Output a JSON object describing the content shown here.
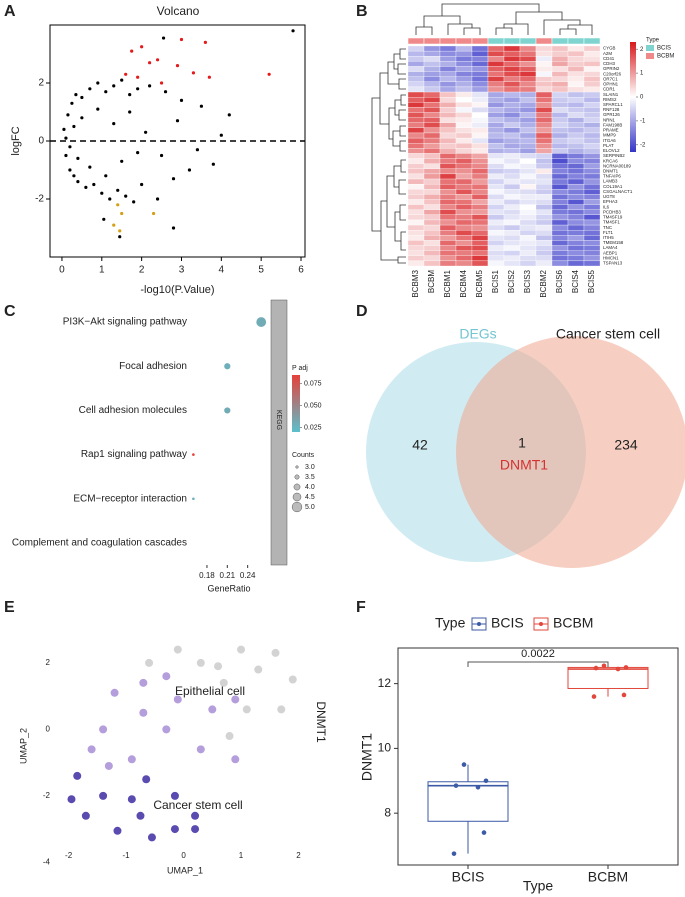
{
  "chart_data": [
    {
      "type": "scatter",
      "panel": "A",
      "title": "Volcano",
      "xlabel": "-log10(P.Value)",
      "ylabel": "logFC",
      "xlim": [
        -0.3,
        6.1
      ],
      "ylim": [
        -4,
        4
      ],
      "xticks": [
        0,
        1,
        2,
        3,
        4,
        5,
        6
      ],
      "yticks": [
        -2,
        0,
        2
      ],
      "hline": 0,
      "frame": true,
      "series": [
        {
          "color": "#000000",
          "x": [
            0.05,
            0.1,
            0.15,
            0.2,
            0.25,
            0.3,
            0.35,
            0.4,
            0.5,
            0.6,
            0.7,
            0.8,
            0.9,
            1.0,
            1.1,
            1.2,
            1.3,
            1.4,
            1.5,
            1.6,
            1.7,
            1.8,
            1.9,
            2.0,
            2.2,
            2.4,
            2.6,
            2.8,
            3.0,
            3.2,
            3.5,
            3.8,
            4.2,
            0.1,
            0.2,
            0.3,
            0.4,
            0.5,
            0.7,
            0.9,
            1.1,
            1.3,
            1.5,
            1.7,
            1.9,
            2.1,
            2.5,
            2.9,
            3.4,
            4.0,
            1.05,
            1.45,
            2.8,
            5.8,
            2.55
          ],
          "values": [
            0.4,
            -0.5,
            0.9,
            -1.0,
            1.3,
            -1.2,
            1.6,
            -1.4,
            1.5,
            -1.6,
            1.8,
            -1.5,
            2.0,
            -1.8,
            1.7,
            -2.0,
            1.9,
            -1.7,
            2.1,
            -1.9,
            1.6,
            -2.1,
            1.8,
            -1.5,
            1.9,
            -2.0,
            1.7,
            -1.3,
            1.4,
            -1.0,
            1.2,
            -0.8,
            0.9,
            0.1,
            -0.2,
            0.5,
            -0.6,
            0.8,
            -0.9,
            1.1,
            -1.2,
            0.6,
            -0.7,
            1.0,
            -0.4,
            0.3,
            -0.5,
            0.7,
            -0.3,
            0.2,
            -2.7,
            -3.3,
            -3.0,
            3.8,
            3.55
          ]
        },
        {
          "color": "#e41a1c",
          "x": [
            1.6,
            1.75,
            1.9,
            2.0,
            2.2,
            2.4,
            2.5,
            2.9,
            3.3,
            3.6,
            3.7,
            3.0,
            5.2
          ],
          "values": [
            2.3,
            3.1,
            2.2,
            3.25,
            2.7,
            2.8,
            2.0,
            2.6,
            2.35,
            3.4,
            2.2,
            3.5,
            2.3
          ]
        },
        {
          "color": "#d4a017",
          "x": [
            1.3,
            1.4,
            1.45,
            1.5,
            2.3
          ],
          "values": [
            -2.9,
            -2.2,
            -3.1,
            -2.5,
            -2.5
          ]
        }
      ]
    },
    {
      "type": "heatmap",
      "panel": "B",
      "columns": [
        "BCBM3",
        "BCBM",
        "BCBM1",
        "BCBM4",
        "BCBM5",
        "BCIS1",
        "BCIS2",
        "BCIS3",
        "BCBM2",
        "BCIS6",
        "BCIS4",
        "BCIS5"
      ],
      "column_types": [
        "BCBM",
        "BCBM",
        "BCBM",
        "BCBM",
        "BCBM",
        "BCIS",
        "BCIS",
        "BCIS",
        "BCBM",
        "BCIS",
        "BCIS",
        "BCIS"
      ],
      "legend_title": "Type",
      "types": [
        {
          "name": "BCIS",
          "color": "#7fd4d0"
        },
        {
          "name": "BCBM",
          "color": "#f08a8a"
        }
      ],
      "clim": [
        -2.3,
        2.3
      ],
      "color_ticks": [
        2,
        1,
        0,
        -1,
        -2
      ],
      "colors": [
        "#3434c8",
        "#ffffff",
        "#d7191c"
      ],
      "rows": [
        "CYGB",
        "A2M",
        "CD41",
        "CDH3",
        "GPRIN2",
        "C20orf26",
        "OR7C1",
        "OPHN1",
        "CDR1",
        "SLAIN1",
        "RIMS2",
        "SPARCL1",
        "RNF128",
        "GPR126",
        "NRN1",
        "FAM198B",
        "PRAME",
        "MMP9",
        "ITGA6",
        "PLAT",
        "ELOVL2",
        "SERPINB2",
        "KRCA6",
        "NCRNA00189",
        "DNMT1",
        "TNFAIP6",
        "LAMB3",
        "COL19A1",
        "CSGALNACT1",
        "UGT8",
        "EPHA3",
        "IL6",
        "PCDHB3",
        "TM4SF19",
        "TM4SF1",
        "TNC",
        "FLT1",
        "ITIH5",
        "TMEM158",
        "LAMA4",
        "AEBP1",
        "HMCN1",
        "TSPAN13"
      ],
      "matrix": [
        [
          -0.5,
          -1.2,
          -1.5,
          -0.8,
          -1.6,
          1.5,
          2.0,
          1.2,
          0.4,
          0.6,
          0.2,
          0.5
        ],
        [
          -0.8,
          -1.0,
          -1.3,
          -1.2,
          -1.8,
          1.8,
          1.6,
          1.4,
          0.3,
          0.5,
          0.6,
          0.2
        ],
        [
          -0.6,
          -0.4,
          -1.1,
          -1.5,
          -1.4,
          1.2,
          2.0,
          1.8,
          -0.2,
          0.8,
          0.4,
          0.3
        ],
        [
          -1.0,
          -0.7,
          -0.9,
          -1.3,
          -1.7,
          2.0,
          1.5,
          1.1,
          0.1,
          0.9,
          0.5,
          0.6
        ],
        [
          -0.4,
          -0.9,
          -1.4,
          -1.0,
          -1.2,
          1.6,
          1.9,
          1.6,
          0.2,
          0.3,
          0.7,
          0.1
        ],
        [
          -0.9,
          -1.1,
          -1.0,
          -1.4,
          -1.5,
          1.4,
          1.8,
          2.0,
          -0.1,
          0.7,
          0.3,
          0.4
        ],
        [
          -0.7,
          -1.3,
          -0.8,
          -1.1,
          -1.6,
          1.9,
          1.3,
          1.5,
          0.5,
          0.4,
          0.2,
          0.6
        ],
        [
          -0.5,
          -0.8,
          -1.2,
          -0.9,
          -1.3,
          1.3,
          1.7,
          1.2,
          0.6,
          0.8,
          0.1,
          0.5
        ],
        [
          -0.3,
          -0.6,
          -1.0,
          -0.7,
          -1.1,
          1.1,
          1.4,
          1.3,
          0.4,
          0.6,
          0.3,
          0.2
        ],
        [
          1.8,
          1.5,
          0.6,
          0.2,
          -0.3,
          -1.0,
          -0.8,
          -0.9,
          1.6,
          -0.5,
          -0.7,
          -0.6
        ],
        [
          1.6,
          1.9,
          0.4,
          0.0,
          -0.2,
          -0.9,
          -1.1,
          -0.7,
          1.4,
          -0.6,
          -0.5,
          -0.8
        ],
        [
          2.0,
          1.4,
          0.8,
          0.3,
          0.1,
          -1.2,
          -0.9,
          -1.0,
          1.1,
          -0.7,
          -0.8,
          -0.5
        ],
        [
          1.4,
          1.7,
          0.5,
          -0.1,
          -0.4,
          -0.8,
          -1.0,
          -1.2,
          1.8,
          -0.4,
          -0.6,
          -0.7
        ],
        [
          1.7,
          1.2,
          0.7,
          0.4,
          0.0,
          -1.1,
          -1.3,
          -0.8,
          1.3,
          -0.8,
          -0.4,
          -0.6
        ],
        [
          1.5,
          1.6,
          0.3,
          0.2,
          -0.1,
          -0.7,
          -0.9,
          -1.1,
          1.5,
          -0.6,
          -0.9,
          -0.5
        ],
        [
          1.3,
          1.8,
          0.9,
          0.1,
          -0.2,
          -1.0,
          -0.6,
          -0.9,
          1.2,
          -0.5,
          -0.7,
          -0.9
        ],
        [
          1.9,
          1.1,
          0.6,
          0.3,
          0.2,
          -0.9,
          -1.2,
          -0.7,
          1.0,
          -0.7,
          -0.8,
          -0.6
        ],
        [
          1.2,
          1.5,
          0.4,
          0.5,
          0.1,
          -0.8,
          -0.7,
          -1.0,
          1.6,
          -0.9,
          -0.6,
          -0.8
        ],
        [
          1.6,
          1.3,
          0.7,
          0.2,
          -0.3,
          -1.1,
          -0.9,
          -0.8,
          1.4,
          -0.6,
          -0.5,
          -0.7
        ],
        [
          1.4,
          1.0,
          0.5,
          0.6,
          0.3,
          -0.7,
          -1.0,
          -0.9,
          1.1,
          -0.8,
          -0.7,
          -0.5
        ],
        [
          1.1,
          1.4,
          0.8,
          0.4,
          0.2,
          -0.9,
          -0.8,
          -1.1,
          0.9,
          -0.6,
          -0.9,
          -0.7
        ],
        [
          0.4,
          0.6,
          1.5,
          1.2,
          0.9,
          -0.3,
          -0.2,
          -0.4,
          -0.5,
          -1.8,
          -1.5,
          -1.2
        ],
        [
          0.2,
          0.8,
          1.3,
          1.6,
          1.1,
          -0.1,
          -0.3,
          0.0,
          -0.7,
          -2.0,
          -1.3,
          -1.4
        ],
        [
          0.5,
          0.3,
          1.7,
          1.4,
          1.2,
          -0.4,
          -0.1,
          -0.2,
          -0.6,
          -1.6,
          -1.7,
          -1.1
        ],
        [
          0.6,
          0.9,
          1.2,
          1.1,
          1.5,
          -0.6,
          -0.5,
          -0.3,
          0.2,
          -1.4,
          -1.6,
          -1.3
        ],
        [
          0.3,
          1.0,
          1.9,
          0.9,
          1.3,
          -0.2,
          -0.4,
          -0.1,
          -0.4,
          -1.7,
          -1.4,
          -1.5
        ],
        [
          0.7,
          0.5,
          1.4,
          1.5,
          1.0,
          -0.5,
          -0.2,
          -0.3,
          -0.3,
          -1.5,
          -1.8,
          -1.2
        ],
        [
          0.1,
          0.7,
          1.6,
          1.3,
          1.4,
          -0.3,
          -0.6,
          0.1,
          -0.5,
          -1.9,
          -1.2,
          -1.6
        ],
        [
          0.4,
          0.4,
          1.1,
          1.7,
          1.2,
          -0.1,
          -0.3,
          -0.4,
          -0.6,
          -1.3,
          -1.5,
          -1.8
        ],
        [
          0.5,
          0.8,
          1.3,
          1.0,
          1.6,
          -0.4,
          -0.1,
          -0.2,
          -0.2,
          -1.6,
          -1.3,
          -1.4
        ],
        [
          0.2,
          0.6,
          1.5,
          1.4,
          0.9,
          -0.2,
          -0.5,
          -0.3,
          -0.4,
          -1.4,
          -1.9,
          -1.1
        ],
        [
          0.6,
          0.3,
          1.2,
          1.6,
          1.3,
          -0.5,
          -0.2,
          0.0,
          -0.7,
          -1.7,
          -1.2,
          -1.5
        ],
        [
          0.3,
          0.9,
          1.8,
          1.1,
          1.0,
          -0.3,
          -0.4,
          -0.1,
          -0.3,
          -1.5,
          -1.6,
          -1.3
        ],
        [
          0.4,
          0.5,
          1.4,
          1.3,
          1.7,
          -0.6,
          -0.3,
          -0.2,
          -0.5,
          -1.2,
          -1.4,
          -1.9
        ],
        [
          0.1,
          0.7,
          1.1,
          1.5,
          1.4,
          -0.2,
          -0.1,
          -0.4,
          -0.6,
          -1.8,
          -1.3,
          -1.2
        ],
        [
          0.5,
          0.4,
          1.6,
          1.2,
          1.1,
          -0.4,
          -0.6,
          -0.3,
          -0.2,
          -1.3,
          -1.7,
          -1.4
        ],
        [
          0.3,
          0.6,
          1.3,
          1.8,
          1.5,
          -0.1,
          -0.2,
          -0.5,
          -0.4,
          -1.6,
          -1.5,
          -1.6
        ],
        [
          0.2,
          0.8,
          1.0,
          1.4,
          1.9,
          -0.3,
          -0.4,
          -0.1,
          -0.7,
          -1.4,
          -1.1,
          -1.7
        ],
        [
          0.6,
          0.3,
          1.5,
          1.1,
          1.6,
          -0.5,
          -0.3,
          -0.2,
          -0.3,
          -1.7,
          -1.4,
          -1.3
        ],
        [
          0.4,
          0.5,
          1.2,
          1.7,
          1.8,
          -0.2,
          -0.1,
          -0.3,
          -0.5,
          -1.2,
          -1.6,
          -1.5
        ],
        [
          0.3,
          0.7,
          1.4,
          1.3,
          1.4,
          -0.4,
          -0.5,
          -0.2,
          -0.6,
          -1.5,
          -1.3,
          -1.4
        ],
        [
          0.5,
          0.4,
          1.1,
          1.5,
          2.0,
          -0.3,
          -0.2,
          -0.4,
          -0.4,
          -1.6,
          -1.5,
          -1.2
        ],
        [
          0.2,
          0.6,
          1.3,
          1.2,
          1.7,
          -0.1,
          -0.3,
          -0.5,
          -0.2,
          -1.3,
          -1.7,
          -1.6
        ]
      ]
    },
    {
      "type": "dot",
      "panel": "C",
      "categories": [
        "PI3K−Akt signaling pathway",
        "Focal adhesion",
        "Cell adhesion molecules",
        "Rap1 signaling pathway",
        "ECM−receptor interaction",
        "Complement and coagulation cascades"
      ],
      "values": [
        0.26,
        0.21,
        0.21,
        0.16,
        0.16,
        null
      ],
      "counts": [
        5,
        4,
        4,
        3,
        3,
        null
      ],
      "padj": [
        0.03,
        0.028,
        0.03,
        0.085,
        0.028,
        null
      ],
      "xlim": [
        0.155,
        0.27
      ],
      "xticks": [
        0.18,
        0.21,
        0.24
      ],
      "xlabel": "GeneRatio",
      "strip": "KEGG",
      "color_title": "P adj",
      "clim": [
        0.02,
        0.085
      ],
      "colors": [
        "#5cc0cc",
        "#e5413b"
      ],
      "color_ticks": [
        0.075,
        {
          "value": 0.05,
          "label": "0.050"
        },
        0.025
      ],
      "size_title": "Counts",
      "size_ticks": [
        {
          "value": 3,
          "label": "3.0"
        },
        3.5,
        {
          "value": 4,
          "label": "4.0"
        },
        4.5,
        {
          "value": 5,
          "label": "5.0"
        }
      ]
    },
    {
      "type": "venn",
      "panel": "D",
      "sets": [
        {
          "name": "DEGs",
          "color": "#a9dce7",
          "count": 42
        },
        {
          "name": "Cancer stem cell",
          "color": "#f0a890",
          "count": 234
        }
      ],
      "intersection": {
        "count": 1,
        "label": "DNMT1"
      }
    },
    {
      "type": "scatter",
      "panel": "E",
      "xlabel": "UMAP_1",
      "ylabel": "UMAP_2",
      "side_label": "DNMT1",
      "annotations": [
        "Epithelial cell",
        "Cancer stem cell"
      ],
      "xlim": [
        -2.15,
        2.2
      ],
      "ylim": [
        -4.2,
        3.2
      ],
      "xticks": [
        -2,
        -1,
        0,
        1,
        2
      ],
      "yticks": [
        -4,
        -2,
        0,
        2
      ],
      "frame": false,
      "series": [
        {
          "color": "#d3d3d3",
          "x": [
            -0.1,
            1.0,
            1.6,
            -0.6,
            0.3,
            1.3,
            1.9,
            0.7,
            1.1,
            1.7,
            0.8,
            0.6
          ],
          "values": [
            2.4,
            2.4,
            2.3,
            2.0,
            2.0,
            1.8,
            1.5,
            1.4,
            0.6,
            0.6,
            -0.2,
            1.9
          ]
        },
        {
          "color": "#b49edc",
          "x": [
            -1.2,
            -0.7,
            -0.3,
            -0.1,
            -0.7,
            -0.3,
            0.5,
            0.9,
            -1.4,
            0.3,
            0.9,
            -1.3,
            -0.9,
            -1.6
          ],
          "values": [
            1.1,
            1.4,
            1.6,
            0.9,
            0.5,
            0.0,
            0.6,
            0.9,
            0.0,
            -0.6,
            -0.9,
            -1.1,
            -0.9,
            -0.6
          ]
        },
        {
          "color": "#5a4bb0",
          "x": [
            -1.85,
            -1.7,
            -1.4,
            -0.9,
            -0.65,
            -1.15,
            -0.75,
            -0.55,
            -0.15,
            -0.15,
            0.2,
            0.2,
            -1.95
          ],
          "values": [
            -1.4,
            -2.6,
            -2.0,
            -2.1,
            -1.5,
            -3.05,
            -2.6,
            -3.25,
            -2.0,
            -3.0,
            -2.6,
            -3.0,
            -2.1
          ]
        }
      ]
    },
    {
      "type": "box",
      "panel": "F",
      "categories": [
        "BCIS",
        "BCBM"
      ],
      "colors": [
        "#3c5aa6",
        "#e2473b"
      ],
      "legend_title": "Type",
      "xlabel": "Type",
      "ylabel": "DNMT1",
      "annotation": "0.0022",
      "ylim": [
        6.4,
        13.1
      ],
      "yticks": [
        8,
        10,
        12
      ],
      "stats": [
        {
          "min": 6.75,
          "q1": 7.75,
          "median": 8.85,
          "q3": 8.97,
          "max": 9.5,
          "points": [
            9.5,
            9.0,
            8.85,
            8.8,
            7.4,
            6.75
          ]
        },
        {
          "min": 11.6,
          "q1": 11.85,
          "median": 12.45,
          "q3": 12.5,
          "max": 12.55,
          "points": [
            12.55,
            12.5,
            12.48,
            12.45,
            11.65,
            11.6
          ]
        }
      ]
    }
  ]
}
